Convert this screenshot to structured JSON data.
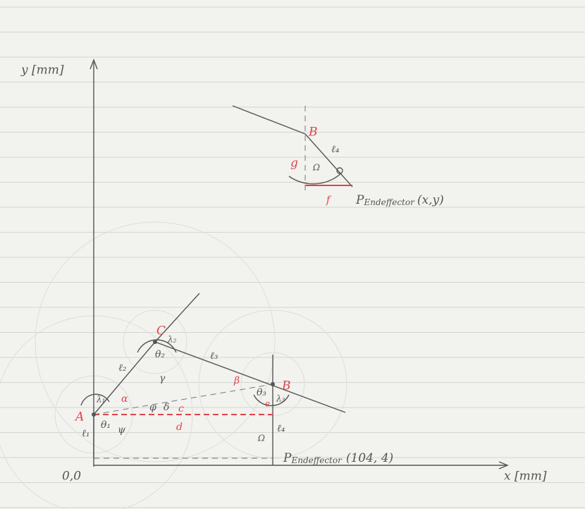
{
  "axes": {
    "y_label": "y [mm]",
    "x_label": "x [mm]",
    "origin": "0,0"
  },
  "points": {
    "A": "A",
    "B": "B",
    "C": "C"
  },
  "main_labels": {
    "l1": "ℓ₁",
    "l2": "ℓ₂",
    "l3": "ℓ₃",
    "l4": "ℓ₄",
    "theta1": "θ₁",
    "theta2": "θ₂",
    "theta3": "θ₃",
    "lambda1": "λ₁",
    "lambda2": "λ₂",
    "lambda3": "λ₃",
    "alpha": "α",
    "beta": "β",
    "gamma": "γ",
    "delta": "δ",
    "phi": "φ",
    "psi": "ψ",
    "c": "c",
    "d": "d",
    "e": "e",
    "omega": "Ω"
  },
  "endeffector": {
    "p": "P",
    "sub": "Endeffector",
    "coords": "(104, 4)"
  },
  "inset": {
    "B": "B",
    "l4": "ℓ₄",
    "g": "g",
    "omega": "Ω",
    "f": "f",
    "endeffector": {
      "p": "P",
      "sub": "Endeffector",
      "coords": "(x,y)"
    }
  }
}
